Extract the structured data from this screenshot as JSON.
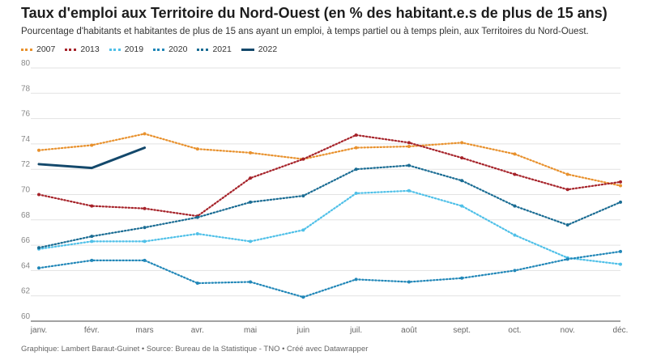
{
  "header": {
    "title": "Taux d'emploi aux Territoire du Nord-Ouest (en % des habitant.e.s de plus de 15 ans)",
    "subtitle": "Pourcentage d'habitants et habitantes de plus de 15 ans ayant un emploi, à temps partiel ou à temps plein, aux Territoires du Nord-Ouest."
  },
  "footer": {
    "credit": "Graphique: Lambert Baraut-Guinet • Source: Bureau de la Statistique - TNO • Créé avec Datawrapper"
  },
  "chart_data": {
    "type": "line",
    "categories": [
      "janv.",
      "févr.",
      "mars",
      "avr.",
      "mai",
      "juin",
      "juil.",
      "août",
      "sept.",
      "oct.",
      "nov.",
      "déc."
    ],
    "ylim": [
      60,
      80
    ],
    "yticks": [
      60,
      62,
      64,
      66,
      68,
      70,
      72,
      74,
      76,
      78,
      80
    ],
    "grid": true,
    "legend_position": "top-left",
    "series": [
      {
        "name": "2007",
        "color": "#e8912d",
        "style": "dotted",
        "values": [
          73.5,
          73.9,
          74.8,
          73.6,
          73.3,
          72.8,
          73.7,
          73.8,
          74.1,
          73.2,
          71.6,
          70.7
        ]
      },
      {
        "name": "2013",
        "color": "#a6232a",
        "style": "dotted",
        "values": [
          70.0,
          69.1,
          68.9,
          68.3,
          71.3,
          72.8,
          74.7,
          74.1,
          72.9,
          71.6,
          70.4,
          71.0
        ]
      },
      {
        "name": "2019",
        "color": "#4fc0e8",
        "style": "dotted",
        "values": [
          65.7,
          66.3,
          66.3,
          66.9,
          66.3,
          67.2,
          70.1,
          70.3,
          69.1,
          66.8,
          65.0,
          64.5
        ]
      },
      {
        "name": "2020",
        "color": "#2187b8",
        "style": "dotted",
        "values": [
          64.2,
          64.8,
          64.8,
          63.0,
          63.1,
          61.9,
          63.3,
          63.1,
          63.4,
          64.0,
          64.9,
          65.5
        ]
      },
      {
        "name": "2021",
        "color": "#1a6c93",
        "style": "dotted",
        "values": [
          65.8,
          66.7,
          67.4,
          68.2,
          69.4,
          69.9,
          72.0,
          72.3,
          71.1,
          69.1,
          67.6,
          69.4
        ]
      },
      {
        "name": "2022",
        "color": "#13486b",
        "style": "solid",
        "values": [
          72.4,
          72.1,
          73.7,
          null,
          null,
          null,
          null,
          null,
          null,
          null,
          null,
          null
        ]
      }
    ]
  }
}
